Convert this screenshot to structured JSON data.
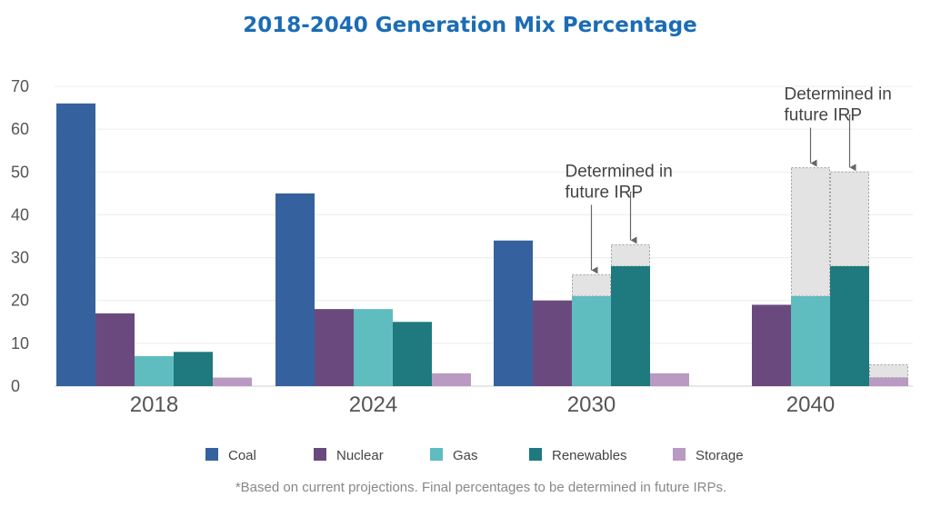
{
  "chart_data": {
    "type": "bar",
    "title": "2018-2040 Generation Mix Percentage",
    "categories": [
      "2018",
      "2024",
      "2030",
      "2040"
    ],
    "ylim": [
      0,
      70
    ],
    "yticks": [
      0,
      10,
      20,
      30,
      40,
      50,
      60,
      70
    ],
    "grid": true,
    "legend_position": "bottom",
    "series": [
      {
        "name": "Coal",
        "color": "#35629f",
        "values": [
          66,
          45,
          34,
          null
        ]
      },
      {
        "name": "Nuclear",
        "color": "#6a4a7e",
        "values": [
          17,
          18,
          20,
          19
        ]
      },
      {
        "name": "Gas",
        "color": "#5fbcbf",
        "values": [
          7,
          18,
          21,
          21
        ]
      },
      {
        "name": "Renewables",
        "color": "#1e7a7e",
        "values": [
          8,
          15,
          28,
          28
        ]
      },
      {
        "name": "Storage",
        "color": "#b99ac2",
        "values": [
          2,
          3,
          3,
          2
        ]
      }
    ],
    "undetermined": [
      {
        "category": "2030",
        "series": "Gas",
        "from": 21,
        "to": 26
      },
      {
        "category": "2030",
        "series": "Renewables",
        "from": 28,
        "to": 33
      },
      {
        "category": "2040",
        "series": "Gas",
        "from": 21,
        "to": 51
      },
      {
        "category": "2040",
        "series": "Renewables",
        "from": 28,
        "to": 50
      },
      {
        "category": "2040",
        "series": "Storage",
        "from": 2,
        "to": 5
      }
    ],
    "undetermined_color": "#e3e3e3",
    "annotations": [
      {
        "category": "2030",
        "lines": [
          "Determined in",
          "future IRP"
        ]
      },
      {
        "category": "2040",
        "lines": [
          "Determined in",
          "future IRP"
        ]
      }
    ],
    "footnote": "*Based on current projections. Final percentages to be determined in future IRPs."
  }
}
